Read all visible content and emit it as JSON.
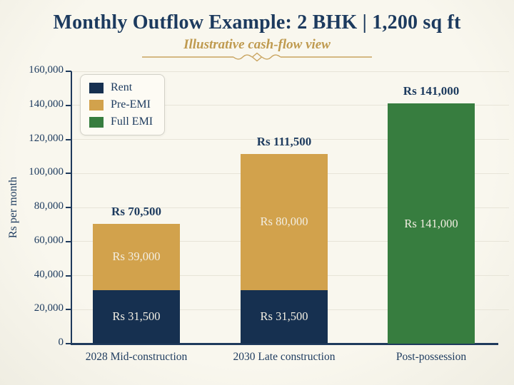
{
  "chart_data": {
    "type": "bar",
    "stacked": true,
    "title": "Monthly Outflow Example: 2 BHK | 1,200 sq ft",
    "subtitle": "Illustrative cash-flow view",
    "ylabel": "Rs per month",
    "xlabel": "",
    "ylim": [
      0,
      160000
    ],
    "ytick_interval": 20000,
    "ytick_labels": [
      "0",
      "20,000",
      "40,000",
      "60,000",
      "80,000",
      "100,000",
      "120,000",
      "140,000",
      "160,000"
    ],
    "grid": true,
    "legend_position": "upper left",
    "categories": [
      "2028 Mid-construction",
      "2030 Late construction",
      "Post-possession"
    ],
    "series": [
      {
        "name": "Rent",
        "color": "#163050",
        "values": [
          31500,
          31500,
          0
        ],
        "value_labels": [
          "Rs 31,500",
          "Rs 31,500",
          ""
        ]
      },
      {
        "name": "Pre-EMI",
        "color": "#d2a24c",
        "values": [
          39000,
          80000,
          0
        ],
        "value_labels": [
          "Rs 39,000",
          "Rs 80,000",
          ""
        ]
      },
      {
        "name": "Full EMI",
        "color": "#377d3f",
        "values": [
          0,
          0,
          141000
        ],
        "value_labels": [
          "",
          "",
          "Rs 141,000"
        ]
      }
    ],
    "totals": [
      70500,
      111500,
      141000
    ],
    "total_labels": [
      "Rs 70,500",
      "Rs 111,500",
      "Rs 141,000"
    ]
  },
  "colors": {
    "background": "#f9f7ee",
    "background_edge": "#efede2",
    "title_text": "#1c3a5e",
    "subtitle_text": "#bf9a4f",
    "divider": "#c9a45f",
    "axis": "#1f3a5c",
    "grid": "#e7e4d8",
    "bar_inner_label": "#f2eee2",
    "legend_bg": "#fdfbf4",
    "legend_border": "#d2d1c8"
  }
}
